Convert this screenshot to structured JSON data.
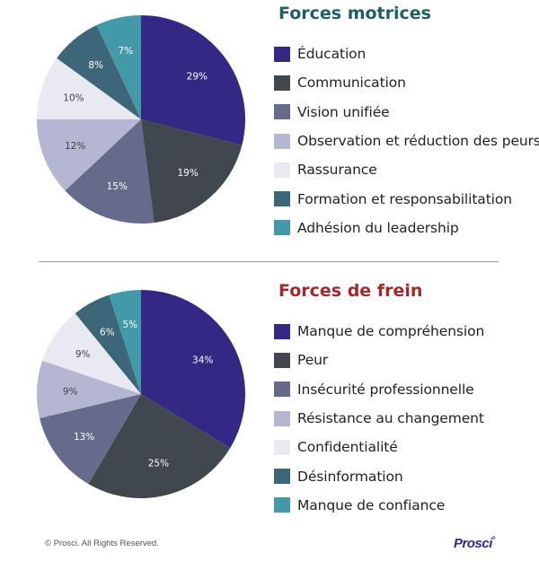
{
  "chart_data": [
    {
      "type": "pie",
      "title": "Forces motrices",
      "title_color": "#1e5f66",
      "categories": [
        "Éducation",
        "Communication",
        "Vision unifiée",
        "Observation et réduction des peurs",
        "Rassurance",
        "Formation et responsabilitation",
        "Adhésion du leadership"
      ],
      "values": [
        29,
        19,
        15,
        12,
        10,
        8,
        7
      ],
      "labels": [
        "29%",
        "19%",
        "15%",
        "12%",
        "10%",
        "8%",
        "7%"
      ],
      "colors": [
        "#332985",
        "#41474f",
        "#646b8b",
        "#b5b6d1",
        "#e9e9f1",
        "#3d6779",
        "#429aa8"
      ],
      "label_colors": [
        "#ffffff",
        "#ffffff",
        "#ffffff",
        "#444444",
        "#444444",
        "#ffffff",
        "#ffffff"
      ],
      "legend_position": "right",
      "start_angle": "12 o'clock, clockwise"
    },
    {
      "type": "pie",
      "title": "Forces de frein",
      "title_color": "#a3282c",
      "categories": [
        "Manque de compréhension",
        "Peur",
        "Insécurité professionnelle",
        "Résistance au changement",
        "Confidentialité",
        "Désinformation",
        "Manque de confiance"
      ],
      "values": [
        34,
        25,
        13,
        9,
        9,
        6,
        5
      ],
      "labels": [
        "34%",
        "25%",
        "13%",
        "9%",
        "9%",
        "6%",
        "5%"
      ],
      "colors": [
        "#332985",
        "#41474f",
        "#646b8b",
        "#b5b6d1",
        "#e9e9f1",
        "#3d6779",
        "#429aa8"
      ],
      "label_colors": [
        "#ffffff",
        "#ffffff",
        "#ffffff",
        "#444444",
        "#444444",
        "#ffffff",
        "#ffffff"
      ],
      "legend_position": "right",
      "start_angle": "12 o'clock, clockwise"
    }
  ],
  "footer": {
    "copyright": "© Prosci. All Rights Reserved.",
    "logo_text": "Prosci",
    "logo_mark": "®"
  }
}
